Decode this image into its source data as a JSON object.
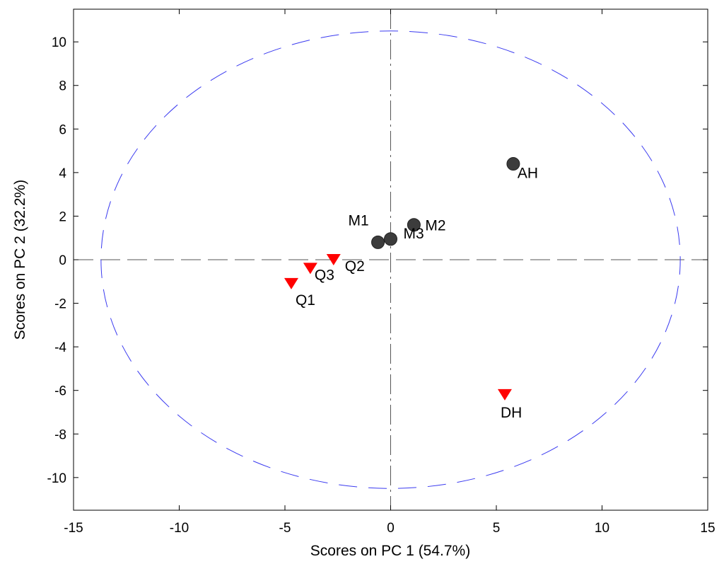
{
  "chart_data": {
    "type": "scatter",
    "title": "",
    "xlabel": "Scores on PC 1 (54.7%)",
    "ylabel": "Scores on PC 2 (32.2%)",
    "xlim": [
      -15,
      15
    ],
    "ylim": [
      -11.5,
      11.5
    ],
    "xticks": [
      -15,
      -10,
      -5,
      0,
      5,
      10,
      15
    ],
    "yticks": [
      -10,
      -8,
      -6,
      -4,
      -2,
      0,
      2,
      4,
      6,
      8,
      10
    ],
    "grid": false,
    "ellipse": {
      "cx": 0,
      "cy": 0,
      "rx": 13.7,
      "ry": 10.5,
      "color": "#3a3af0"
    },
    "reference_line_color": "#555555",
    "series": [
      {
        "marker": "circle",
        "color": "#3c3c3c",
        "points": [
          {
            "label": "M1",
            "x": -0.6,
            "y": 0.8
          },
          {
            "label": "M3",
            "x": 0.0,
            "y": 0.95
          },
          {
            "label": "M2",
            "x": 1.1,
            "y": 1.6
          },
          {
            "label": "AH",
            "x": 5.8,
            "y": 4.4
          }
        ]
      },
      {
        "marker": "triangle-down",
        "color": "#ff0000",
        "points": [
          {
            "label": "Q1",
            "x": -4.7,
            "y": -1.1
          },
          {
            "label": "Q3",
            "x": -3.8,
            "y": -0.4
          },
          {
            "label": "Q2",
            "x": -2.7,
            "y": 0.0
          },
          {
            "label": "DH",
            "x": 5.4,
            "y": -6.2
          }
        ]
      }
    ]
  }
}
